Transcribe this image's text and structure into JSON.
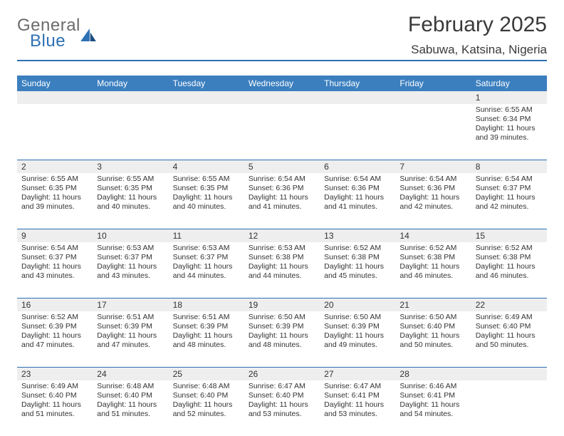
{
  "logo": {
    "line1": "General",
    "line2": "Blue"
  },
  "title": "February 2025",
  "location": "Sabuwa, Katsina, Nigeria",
  "colors": {
    "header_bar": "#3b7fbf",
    "rule": "#2d70b3",
    "daynum_bg": "#eeeeee",
    "text": "#333333",
    "logo_gray": "#6b6b6b"
  },
  "day_headers": [
    "Sunday",
    "Monday",
    "Tuesday",
    "Wednesday",
    "Thursday",
    "Friday",
    "Saturday"
  ],
  "weeks": [
    [
      {
        "n": "",
        "sunrise": "",
        "sunset": "",
        "daylight": ""
      },
      {
        "n": "",
        "sunrise": "",
        "sunset": "",
        "daylight": ""
      },
      {
        "n": "",
        "sunrise": "",
        "sunset": "",
        "daylight": ""
      },
      {
        "n": "",
        "sunrise": "",
        "sunset": "",
        "daylight": ""
      },
      {
        "n": "",
        "sunrise": "",
        "sunset": "",
        "daylight": ""
      },
      {
        "n": "",
        "sunrise": "",
        "sunset": "",
        "daylight": ""
      },
      {
        "n": "1",
        "sunrise": "Sunrise: 6:55 AM",
        "sunset": "Sunset: 6:34 PM",
        "daylight": "Daylight: 11 hours and 39 minutes."
      }
    ],
    [
      {
        "n": "2",
        "sunrise": "Sunrise: 6:55 AM",
        "sunset": "Sunset: 6:35 PM",
        "daylight": "Daylight: 11 hours and 39 minutes."
      },
      {
        "n": "3",
        "sunrise": "Sunrise: 6:55 AM",
        "sunset": "Sunset: 6:35 PM",
        "daylight": "Daylight: 11 hours and 40 minutes."
      },
      {
        "n": "4",
        "sunrise": "Sunrise: 6:55 AM",
        "sunset": "Sunset: 6:35 PM",
        "daylight": "Daylight: 11 hours and 40 minutes."
      },
      {
        "n": "5",
        "sunrise": "Sunrise: 6:54 AM",
        "sunset": "Sunset: 6:36 PM",
        "daylight": "Daylight: 11 hours and 41 minutes."
      },
      {
        "n": "6",
        "sunrise": "Sunrise: 6:54 AM",
        "sunset": "Sunset: 6:36 PM",
        "daylight": "Daylight: 11 hours and 41 minutes."
      },
      {
        "n": "7",
        "sunrise": "Sunrise: 6:54 AM",
        "sunset": "Sunset: 6:36 PM",
        "daylight": "Daylight: 11 hours and 42 minutes."
      },
      {
        "n": "8",
        "sunrise": "Sunrise: 6:54 AM",
        "sunset": "Sunset: 6:37 PM",
        "daylight": "Daylight: 11 hours and 42 minutes."
      }
    ],
    [
      {
        "n": "9",
        "sunrise": "Sunrise: 6:54 AM",
        "sunset": "Sunset: 6:37 PM",
        "daylight": "Daylight: 11 hours and 43 minutes."
      },
      {
        "n": "10",
        "sunrise": "Sunrise: 6:53 AM",
        "sunset": "Sunset: 6:37 PM",
        "daylight": "Daylight: 11 hours and 43 minutes."
      },
      {
        "n": "11",
        "sunrise": "Sunrise: 6:53 AM",
        "sunset": "Sunset: 6:37 PM",
        "daylight": "Daylight: 11 hours and 44 minutes."
      },
      {
        "n": "12",
        "sunrise": "Sunrise: 6:53 AM",
        "sunset": "Sunset: 6:38 PM",
        "daylight": "Daylight: 11 hours and 44 minutes."
      },
      {
        "n": "13",
        "sunrise": "Sunrise: 6:52 AM",
        "sunset": "Sunset: 6:38 PM",
        "daylight": "Daylight: 11 hours and 45 minutes."
      },
      {
        "n": "14",
        "sunrise": "Sunrise: 6:52 AM",
        "sunset": "Sunset: 6:38 PM",
        "daylight": "Daylight: 11 hours and 46 minutes."
      },
      {
        "n": "15",
        "sunrise": "Sunrise: 6:52 AM",
        "sunset": "Sunset: 6:38 PM",
        "daylight": "Daylight: 11 hours and 46 minutes."
      }
    ],
    [
      {
        "n": "16",
        "sunrise": "Sunrise: 6:52 AM",
        "sunset": "Sunset: 6:39 PM",
        "daylight": "Daylight: 11 hours and 47 minutes."
      },
      {
        "n": "17",
        "sunrise": "Sunrise: 6:51 AM",
        "sunset": "Sunset: 6:39 PM",
        "daylight": "Daylight: 11 hours and 47 minutes."
      },
      {
        "n": "18",
        "sunrise": "Sunrise: 6:51 AM",
        "sunset": "Sunset: 6:39 PM",
        "daylight": "Daylight: 11 hours and 48 minutes."
      },
      {
        "n": "19",
        "sunrise": "Sunrise: 6:50 AM",
        "sunset": "Sunset: 6:39 PM",
        "daylight": "Daylight: 11 hours and 48 minutes."
      },
      {
        "n": "20",
        "sunrise": "Sunrise: 6:50 AM",
        "sunset": "Sunset: 6:39 PM",
        "daylight": "Daylight: 11 hours and 49 minutes."
      },
      {
        "n": "21",
        "sunrise": "Sunrise: 6:50 AM",
        "sunset": "Sunset: 6:40 PM",
        "daylight": "Daylight: 11 hours and 50 minutes."
      },
      {
        "n": "22",
        "sunrise": "Sunrise: 6:49 AM",
        "sunset": "Sunset: 6:40 PM",
        "daylight": "Daylight: 11 hours and 50 minutes."
      }
    ],
    [
      {
        "n": "23",
        "sunrise": "Sunrise: 6:49 AM",
        "sunset": "Sunset: 6:40 PM",
        "daylight": "Daylight: 11 hours and 51 minutes."
      },
      {
        "n": "24",
        "sunrise": "Sunrise: 6:48 AM",
        "sunset": "Sunset: 6:40 PM",
        "daylight": "Daylight: 11 hours and 51 minutes."
      },
      {
        "n": "25",
        "sunrise": "Sunrise: 6:48 AM",
        "sunset": "Sunset: 6:40 PM",
        "daylight": "Daylight: 11 hours and 52 minutes."
      },
      {
        "n": "26",
        "sunrise": "Sunrise: 6:47 AM",
        "sunset": "Sunset: 6:40 PM",
        "daylight": "Daylight: 11 hours and 53 minutes."
      },
      {
        "n": "27",
        "sunrise": "Sunrise: 6:47 AM",
        "sunset": "Sunset: 6:41 PM",
        "daylight": "Daylight: 11 hours and 53 minutes."
      },
      {
        "n": "28",
        "sunrise": "Sunrise: 6:46 AM",
        "sunset": "Sunset: 6:41 PM",
        "daylight": "Daylight: 11 hours and 54 minutes."
      },
      {
        "n": "",
        "sunrise": "",
        "sunset": "",
        "daylight": ""
      }
    ]
  ]
}
